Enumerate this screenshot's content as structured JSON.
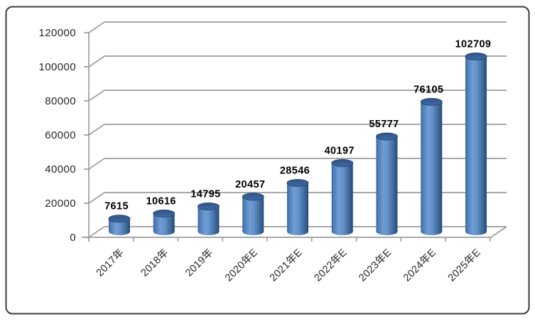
{
  "chart_data": {
    "type": "bar",
    "subtype": "3d-cylinder",
    "title": "",
    "xlabel": "",
    "ylabel": "",
    "categories": [
      "2017年",
      "2018年",
      "2019年",
      "2020年E",
      "2021年E",
      "2022年E",
      "2023年E",
      "2024年E",
      "2025年E"
    ],
    "values": [
      7615,
      10616,
      14795,
      20457,
      28546,
      40197,
      55777,
      76105,
      102709
    ],
    "data_labels": [
      "7615",
      "10616",
      "14795",
      "20457",
      "28546",
      "40197",
      "55777",
      "76105",
      "102709"
    ],
    "ylim": [
      0,
      120000
    ],
    "ytick_step": 20000,
    "yticks": [
      0,
      20000,
      40000,
      60000,
      80000,
      100000,
      120000
    ],
    "ytick_labels": [
      "0",
      "20000",
      "40000",
      "60000",
      "80000",
      "100000",
      "120000"
    ],
    "grid": true,
    "legend": "none",
    "colors": {
      "bar_edge_dark": "#27497b",
      "bar_left_dark": "#3a679f",
      "bar_mid_light": "#6f9cd4",
      "bar_right_dark": "#2b5183",
      "bar_top_fill": "#39639c",
      "bar_top_stroke": "#27497b",
      "gridline": "#9d9d9d",
      "axis": "#9d9d9d",
      "frame_border": "#3c3c3c",
      "background": "#ffffff",
      "label_text": "#000000",
      "tick_text": "#262626"
    }
  }
}
